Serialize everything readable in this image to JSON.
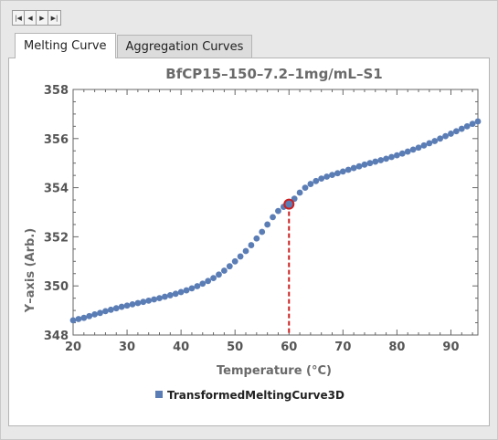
{
  "nav": {
    "buttons": [
      {
        "name": "first-button",
        "icon": "skip-to-start-icon",
        "glyph": "|◀"
      },
      {
        "name": "prev-button",
        "icon": "step-back-icon",
        "glyph": "◀"
      },
      {
        "name": "next-button",
        "icon": "step-forward-icon",
        "glyph": "▶"
      },
      {
        "name": "last-button",
        "icon": "skip-to-end-icon",
        "glyph": "▶|"
      }
    ]
  },
  "tabs": {
    "melting": "Melting Curve",
    "aggregation": "Aggregation Curves"
  },
  "colors": {
    "series": "#5b7db5",
    "highlight": "#cc1f1f",
    "axis": "#666666"
  },
  "chart_data": {
    "type": "scatter",
    "title": "BfCP15–150–7.2–1mg/mL–S1",
    "xlabel": "Temperature  (°C)",
    "ylabel": "Y–axis  (Arb.)",
    "xlim": [
      20,
      95
    ],
    "ylim": [
      348,
      358
    ],
    "xticks": [
      20,
      30,
      40,
      50,
      60,
      70,
      80,
      90
    ],
    "yticks": [
      348,
      350,
      352,
      354,
      356,
      358
    ],
    "grid": false,
    "legend_position": "bottom-center",
    "series": [
      {
        "name": "TransformedMeltingCurve3D",
        "x": [
          20,
          21,
          22,
          23,
          24,
          25,
          26,
          27,
          28,
          29,
          30,
          31,
          32,
          33,
          34,
          35,
          36,
          37,
          38,
          39,
          40,
          41,
          42,
          43,
          44,
          45,
          46,
          47,
          48,
          49,
          50,
          51,
          52,
          53,
          54,
          55,
          56,
          57,
          58,
          59,
          60,
          61,
          62,
          63,
          64,
          65,
          66,
          67,
          68,
          69,
          70,
          71,
          72,
          73,
          74,
          75,
          76,
          77,
          78,
          79,
          80,
          81,
          82,
          83,
          84,
          85,
          86,
          87,
          88,
          89,
          90,
          91,
          92,
          93,
          94,
          95
        ],
        "y": [
          348.6,
          348.65,
          348.7,
          348.77,
          348.84,
          348.9,
          348.97,
          349.03,
          349.09,
          349.15,
          349.2,
          349.25,
          349.3,
          349.35,
          349.4,
          349.45,
          349.5,
          349.56,
          349.62,
          349.68,
          349.75,
          349.82,
          349.9,
          349.99,
          350.09,
          350.2,
          350.32,
          350.46,
          350.62,
          350.8,
          351.0,
          351.2,
          351.42,
          351.66,
          351.93,
          352.2,
          352.5,
          352.8,
          353.05,
          353.22,
          353.33,
          353.55,
          353.8,
          354.0,
          354.15,
          354.27,
          354.37,
          354.45,
          354.52,
          354.59,
          354.66,
          354.73,
          354.8,
          354.87,
          354.94,
          355.0,
          355.06,
          355.12,
          355.18,
          355.25,
          355.32,
          355.39,
          355.47,
          355.55,
          355.63,
          355.72,
          355.81,
          355.9,
          356.0,
          356.1,
          356.2,
          356.3,
          356.4,
          356.5,
          356.6,
          356.7
        ]
      }
    ],
    "highlight_point": {
      "x": 60,
      "y": 353.33
    }
  }
}
